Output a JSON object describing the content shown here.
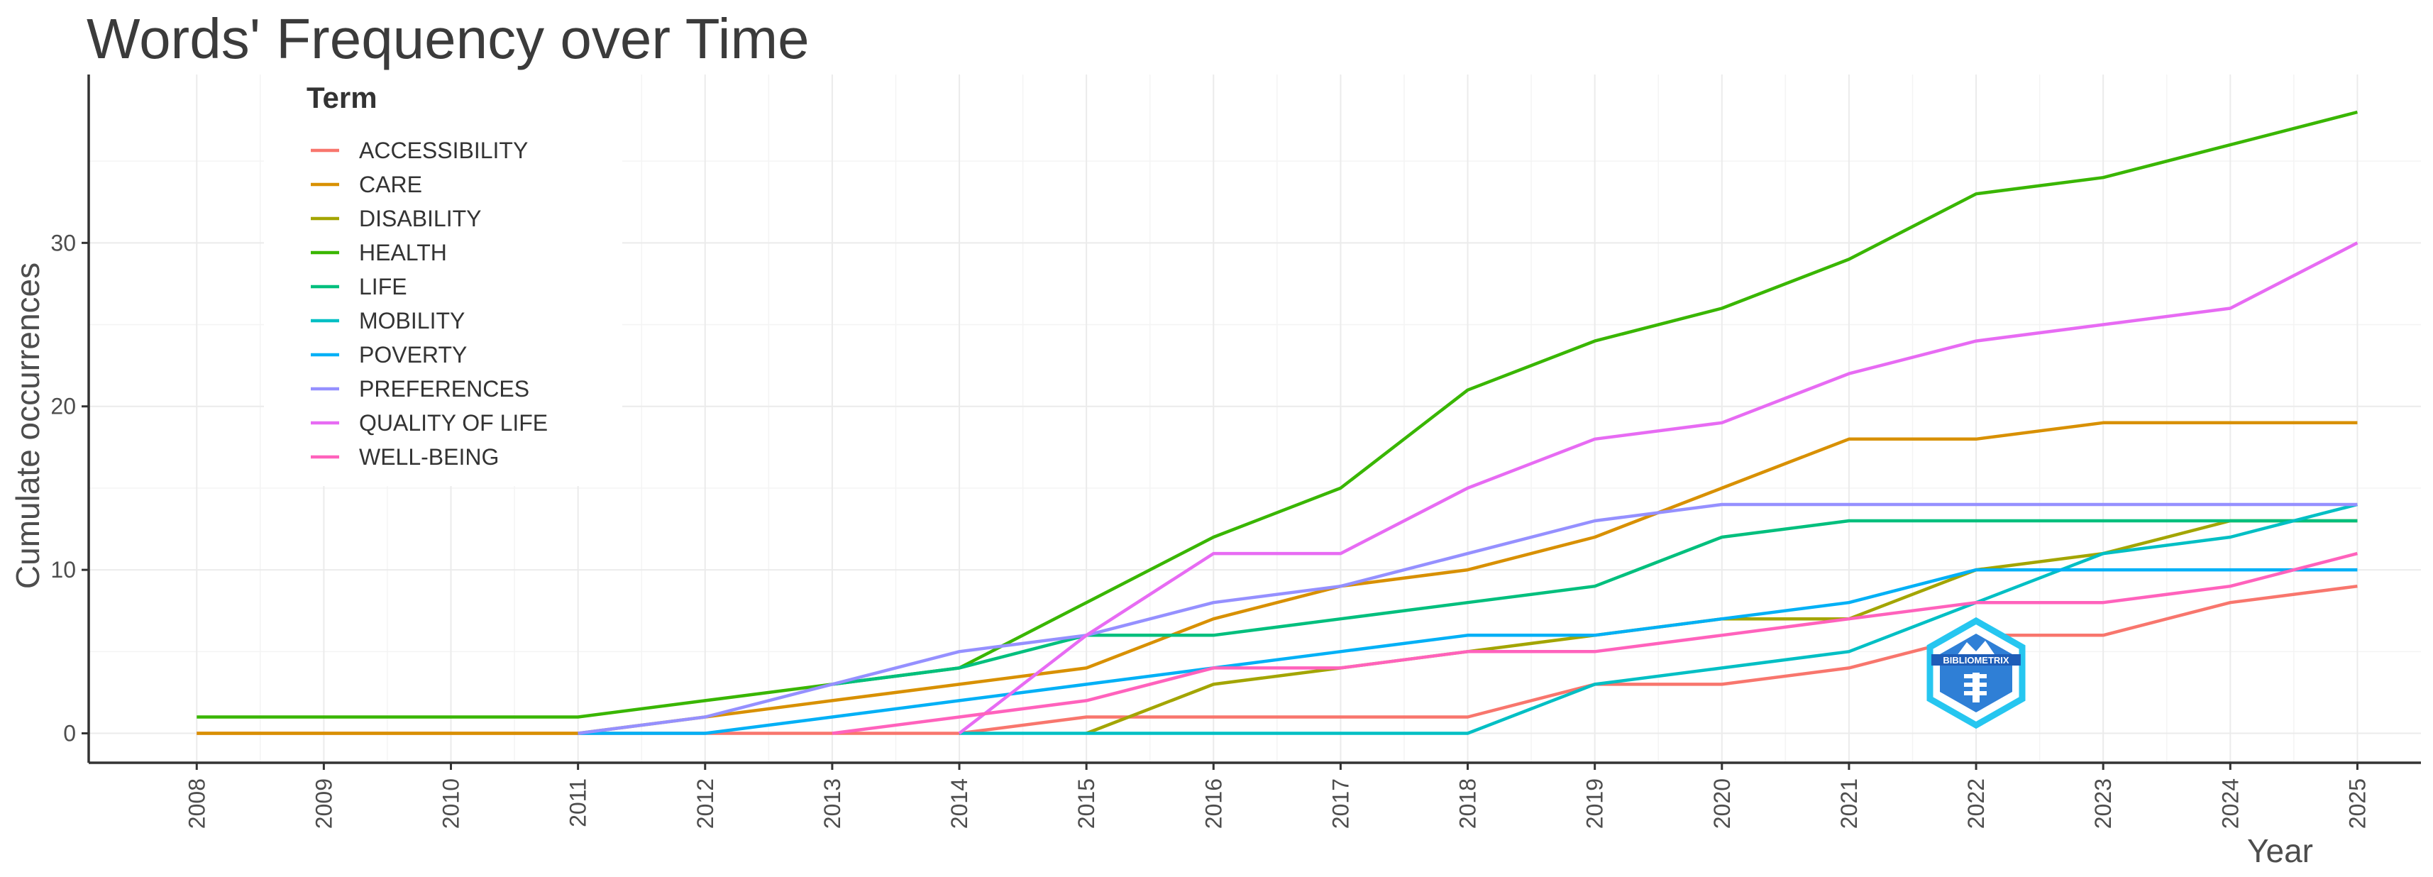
{
  "chart_data": {
    "type": "line",
    "title": "Words' Frequency over Time",
    "xlabel": "Year",
    "ylabel": "Cumulate occurrences",
    "x": [
      2008,
      2009,
      2010,
      2011,
      2012,
      2013,
      2014,
      2015,
      2016,
      2017,
      2018,
      2019,
      2020,
      2021,
      2022,
      2023,
      2024,
      2025
    ],
    "x_tick_labels": [
      "2008",
      "2009",
      "2010",
      "2011",
      "2012",
      "2013",
      "2014",
      "2015",
      "2016",
      "2017",
      "2018",
      "2019",
      "2020",
      "2021",
      "2022",
      "2023",
      "2024",
      "2025"
    ],
    "y_ticks": [
      0,
      10,
      20,
      30
    ],
    "y_tick_labels": [
      "0",
      "10",
      "20",
      "30"
    ],
    "xlim": [
      2007.15,
      2025.5
    ],
    "ylim": [
      -1.8,
      40.3
    ],
    "grid": true,
    "legend_title": "Term",
    "legend_position": "top-left inside",
    "series": [
      {
        "name": "ACCESSIBILITY",
        "color": "#F8766D",
        "x": [
          2008,
          2009,
          2010,
          2011,
          2012,
          2013,
          2014,
          2015,
          2016,
          2017,
          2018,
          2019,
          2020,
          2021,
          2022,
          2023,
          2024,
          2025
        ],
        "values": [
          0,
          0,
          0,
          0,
          0,
          0,
          0,
          1,
          1,
          1,
          1,
          3,
          3,
          4,
          6,
          6,
          8,
          9
        ]
      },
      {
        "name": "CARE",
        "color": "#D89000",
        "x": [
          2008,
          2009,
          2010,
          2011,
          2012,
          2013,
          2014,
          2015,
          2016,
          2017,
          2018,
          2019,
          2020,
          2021,
          2022,
          2023,
          2024,
          2025
        ],
        "values": [
          0,
          0,
          0,
          0,
          1,
          2,
          3,
          4,
          7,
          9,
          10,
          12,
          15,
          18,
          18,
          19,
          19,
          19
        ]
      },
      {
        "name": "DISABILITY",
        "color": "#A3A500",
        "x": [
          2015,
          2016,
          2017,
          2018,
          2019,
          2020,
          2021,
          2022,
          2023,
          2024,
          2025
        ],
        "values": [
          0,
          3,
          4,
          5,
          6,
          7,
          7,
          10,
          11,
          13,
          13
        ]
      },
      {
        "name": "HEALTH",
        "color": "#39B600",
        "x": [
          2008,
          2009,
          2010,
          2011,
          2012,
          2013,
          2014,
          2015,
          2016,
          2017,
          2018,
          2019,
          2020,
          2021,
          2022,
          2023,
          2024,
          2025
        ],
        "values": [
          1,
          1,
          1,
          1,
          2,
          3,
          4,
          8,
          12,
          15,
          21,
          24,
          26,
          29,
          33,
          34,
          36,
          38
        ]
      },
      {
        "name": "LIFE",
        "color": "#00BF7D",
        "x": [
          2013,
          2014,
          2015,
          2016,
          2017,
          2018,
          2019,
          2020,
          2021,
          2022,
          2023,
          2024,
          2025
        ],
        "values": [
          3,
          4,
          6,
          6,
          7,
          8,
          9,
          12,
          13,
          13,
          13,
          13,
          13
        ]
      },
      {
        "name": "MOBILITY",
        "color": "#00BFC4",
        "x": [
          2014,
          2015,
          2016,
          2017,
          2018,
          2019,
          2020,
          2021,
          2022,
          2023,
          2024,
          2025
        ],
        "values": [
          0,
          0,
          0,
          0,
          0,
          3,
          4,
          5,
          8,
          11,
          12,
          14
        ]
      },
      {
        "name": "POVERTY",
        "color": "#00B0F6",
        "x": [
          2011,
          2012,
          2013,
          2014,
          2015,
          2016,
          2017,
          2018,
          2019,
          2020,
          2021,
          2022,
          2023,
          2024,
          2025
        ],
        "values": [
          0,
          0,
          1,
          2,
          3,
          4,
          5,
          6,
          6,
          7,
          8,
          10,
          10,
          10,
          10
        ]
      },
      {
        "name": "PREFERENCES",
        "color": "#9590FF",
        "x": [
          2011,
          2012,
          2013,
          2014,
          2015,
          2016,
          2017,
          2018,
          2019,
          2020,
          2021,
          2022,
          2023,
          2024,
          2025
        ],
        "values": [
          0,
          1,
          3,
          5,
          6,
          8,
          9,
          11,
          13,
          14,
          14,
          14,
          14,
          14,
          14
        ]
      },
      {
        "name": "QUALITY OF LIFE",
        "color": "#E76BF3",
        "x": [
          2014,
          2015,
          2016,
          2017,
          2018,
          2019,
          2020,
          2021,
          2022,
          2023,
          2024,
          2025
        ],
        "values": [
          0,
          6,
          11,
          11,
          15,
          18,
          19,
          22,
          24,
          25,
          26,
          30
        ]
      },
      {
        "name": "WELL-BEING",
        "color": "#FF62BC",
        "x": [
          2013,
          2014,
          2015,
          2016,
          2017,
          2018,
          2019,
          2020,
          2021,
          2022,
          2023,
          2024,
          2025
        ],
        "values": [
          0,
          1,
          2,
          4,
          4,
          5,
          5,
          6,
          7,
          8,
          8,
          9,
          11
        ]
      }
    ]
  },
  "watermark": {
    "text": "BIBLIOMETRIX",
    "color": "#1e88e5"
  }
}
